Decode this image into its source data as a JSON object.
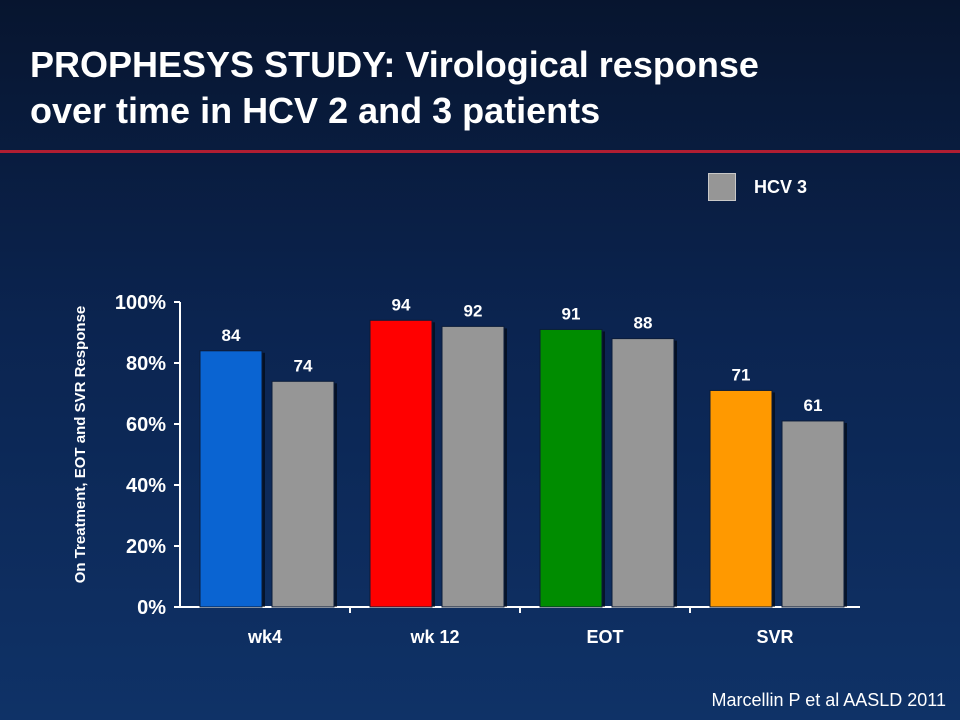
{
  "slide": {
    "title_lines": [
      "PROPHESYS STUDY: Virological response",
      "over time in HCV 2 and 3 patients"
    ],
    "citation": "Marcellin P et al AASLD 2011"
  },
  "colors": {
    "title_rule": "#b01e32",
    "hcv3": "#969696",
    "wk4": "#0a64d2",
    "wk12": "#ff0000",
    "eot": "#008c00",
    "svr": "#ff9900"
  },
  "legend": {
    "items": [
      {
        "label": "HCV 3",
        "color": "#969696"
      }
    ]
  },
  "chart_data": {
    "type": "bar",
    "ylabel": "On Treatment, EOT and SVR  Response",
    "xlabel": "",
    "ylim": [
      0,
      100
    ],
    "yticks": [
      "0%",
      "20%",
      "40%",
      "60%",
      "80%",
      "100%"
    ],
    "categories": [
      "wk4",
      "wk 12",
      "EOT",
      "SVR"
    ],
    "series": [
      {
        "values": [
          84,
          94,
          91,
          71
        ],
        "colors": [
          "#0a64d2",
          "#ff0000",
          "#008c00",
          "#ff9900"
        ]
      },
      {
        "name": "HCV 3",
        "values": [
          74,
          92,
          88,
          61
        ],
        "colors": [
          "#969696",
          "#969696",
          "#969696",
          "#969696"
        ]
      }
    ],
    "data_labels": [
      [
        "84",
        "94",
        "91",
        "71"
      ],
      [
        "74",
        "92",
        "88",
        "61"
      ]
    ],
    "grid": false,
    "legend_position": "top-right"
  }
}
